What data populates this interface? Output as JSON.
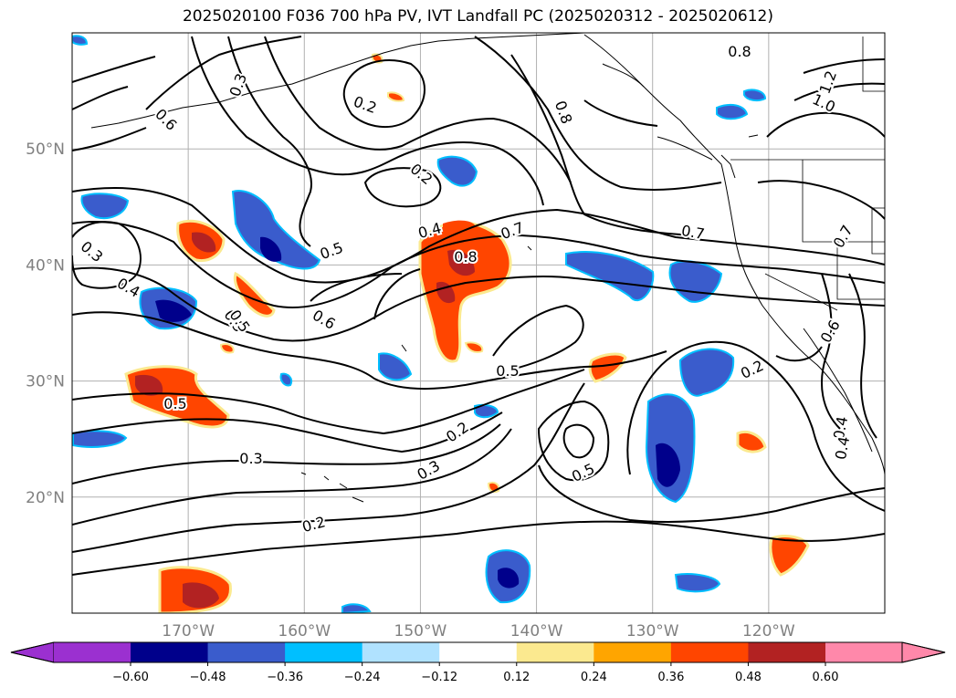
{
  "title": "2025020100 F036 700 hPa PV, IVT Landfall PC (2025020312 - 2025020612)",
  "map": {
    "lat_labels": [
      {
        "text": "50°N",
        "lat": 50
      },
      {
        "text": "40°N",
        "lat": 40
      },
      {
        "text": "30°N",
        "lat": 30
      },
      {
        "text": "20°N",
        "lat": 20
      }
    ],
    "lon_labels": [
      {
        "text": "170°W",
        "lon": -170
      },
      {
        "text": "160°W",
        "lon": -160
      },
      {
        "text": "150°W",
        "lon": -150
      },
      {
        "text": "140°W",
        "lon": -140
      },
      {
        "text": "130°W",
        "lon": -130
      },
      {
        "text": "120°W",
        "lon": -120
      }
    ],
    "lon_range": [
      -180,
      -110
    ],
    "lat_range": [
      10,
      60
    ],
    "gridline_color": "#b0b0b0",
    "contour_labels": [
      "0.3",
      "0.2",
      "0.8",
      "0.6",
      "0.2",
      "0.8",
      "1.2",
      "1.0",
      "0.2",
      "0.5",
      "0.4",
      "0.7",
      "0.7",
      "0.3",
      "0.5",
      "0.8",
      "0.6",
      "0.7",
      "0.4",
      "0.5",
      "0.6",
      "0.5",
      "0.2",
      "0.2",
      "0.5",
      "0.4",
      "0.4",
      "0.3",
      "0.5",
      "0.3",
      "0.2"
    ]
  },
  "colorbar": {
    "ticks": [
      "−0.60",
      "−0.48",
      "−0.36",
      "−0.24",
      "−0.12",
      "0.12",
      "0.24",
      "0.36",
      "0.48",
      "0.60"
    ],
    "colors": [
      "#9b30d0",
      "#00008b",
      "#3a5ccc",
      "#00bfff",
      "#b0e2ff",
      "#ffffff",
      "#fbe98f",
      "#ffa500",
      "#ff4500",
      "#b22222",
      "#ff88aa"
    ]
  },
  "fill_colors": {
    "neg_strong": "#00008b",
    "neg_mid": "#3a5ccc",
    "neg_light": "#00bfff",
    "pos_light": "#ffa500",
    "pos_mid": "#ff4500",
    "pos_strong": "#b22222",
    "pos_edge": "#fbe98f"
  }
}
